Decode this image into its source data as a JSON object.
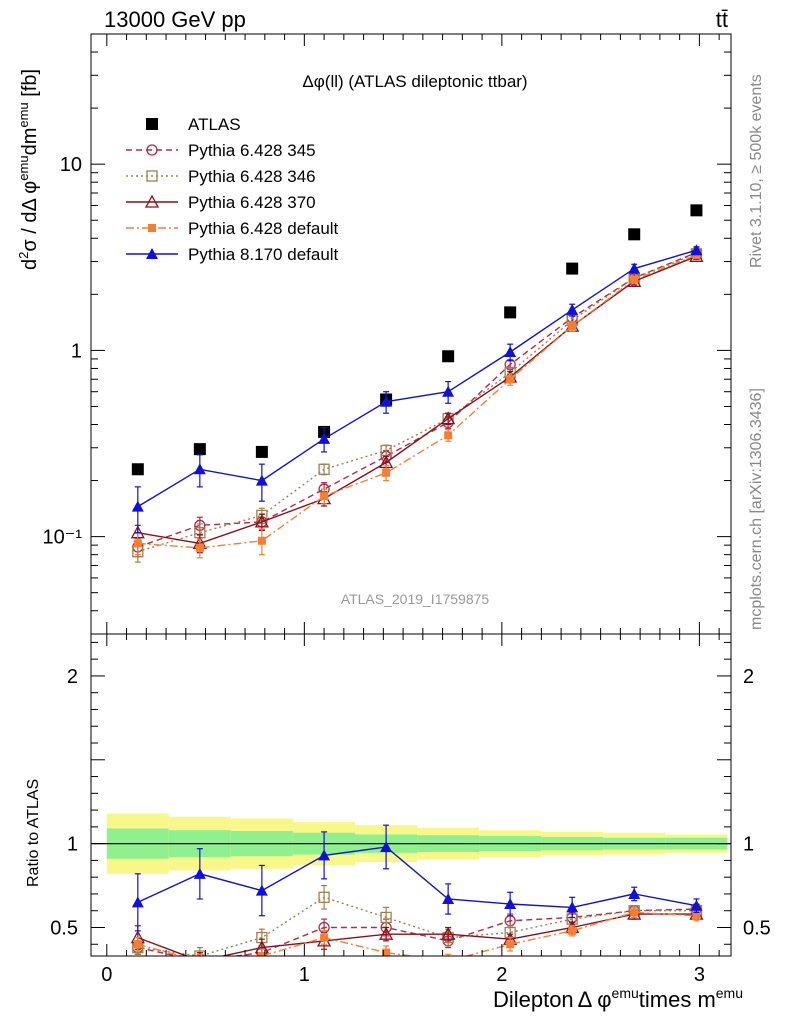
{
  "header": {
    "energy_label": "13000 GeV pp",
    "process_label": "tt̄"
  },
  "side_labels": {
    "rivet": "Rivet 3.1.10, ≥ 500k events",
    "mcplots": "mcplots.cern.ch [arXiv:1306.3436]"
  },
  "plot_title": "Δφ(ll) (ATLAS dileptonic ttbar)",
  "watermark": "ATLAS_2019_I1759875",
  "colors": {
    "atlas": "#000000",
    "py6_345": "#b22a46",
    "py6_346": "#a0804a",
    "py6_370": "#8b0e1c",
    "py6_default": "#f57f30",
    "py8_default": "#1010dd",
    "band_inner": "#8ef08e",
    "band_outer": "#f8f88a"
  },
  "chart_data": [
    {
      "type": "scatter",
      "panel": "main",
      "ylabel": "d²σ / dΔ φ^emu dm^emu [fb]",
      "yscale": "log",
      "ylim": [
        0.03,
        50
      ],
      "xlim": [
        -0.08,
        3.16
      ],
      "y_ticks": [
        "10⁻¹",
        "1",
        "10"
      ],
      "legend": [
        "ATLAS",
        "Pythia 6.428 345",
        "Pythia 6.428 346",
        "Pythia 6.428 370",
        "Pythia 6.428 default",
        "Pythia 8.170 default"
      ],
      "legend_position": "top-left",
      "x": [
        0.157,
        0.471,
        0.785,
        1.1,
        1.414,
        1.728,
        2.042,
        2.356,
        2.67,
        2.985
      ],
      "series": [
        {
          "name": "ATLAS",
          "marker": "square-filled",
          "values": [
            0.23,
            0.295,
            0.285,
            0.365,
            0.545,
            0.93,
            1.6,
            2.75,
            4.2,
            5.65
          ]
        },
        {
          "name": "Pythia 6.428 345",
          "marker": "circle-open",
          "line": "dashed",
          "values": [
            0.088,
            0.115,
            0.12,
            0.18,
            0.27,
            0.41,
            0.84,
            1.5,
            2.45,
            3.35
          ],
          "err": [
            0.01,
            0.012,
            0.012,
            0.015,
            0.02,
            0.03,
            0.05,
            0.08,
            0.1,
            0.12
          ]
        },
        {
          "name": "Pythia 6.428 346",
          "marker": "square-open",
          "line": "dotted",
          "values": [
            0.083,
            0.105,
            0.13,
            0.23,
            0.29,
            0.43,
            0.76,
            1.45,
            2.45,
            3.3
          ],
          "err": [
            0.01,
            0.012,
            0.012,
            0.015,
            0.02,
            0.03,
            0.05,
            0.08,
            0.1,
            0.12
          ]
        },
        {
          "name": "Pythia 6.428 370",
          "marker": "triangle-open",
          "line": "solid",
          "values": [
            0.105,
            0.092,
            0.12,
            0.16,
            0.25,
            0.43,
            0.72,
            1.35,
            2.35,
            3.2
          ],
          "err": [
            0.01,
            0.01,
            0.012,
            0.014,
            0.02,
            0.03,
            0.05,
            0.08,
            0.1,
            0.12
          ]
        },
        {
          "name": "Pythia 6.428 default",
          "marker": "square-filled-small",
          "line": "dashdot",
          "values": [
            0.092,
            0.087,
            0.095,
            0.165,
            0.22,
            0.35,
            0.7,
            1.35,
            2.4,
            3.25
          ],
          "err": [
            0.012,
            0.01,
            0.015,
            0.015,
            0.02,
            0.025,
            0.05,
            0.08,
            0.1,
            0.12
          ]
        },
        {
          "name": "Pythia 8.170 default",
          "marker": "triangle-filled",
          "line": "solid",
          "values": [
            0.145,
            0.23,
            0.2,
            0.335,
            0.53,
            0.6,
            0.98,
            1.65,
            2.75,
            3.45
          ],
          "err": [
            0.04,
            0.045,
            0.045,
            0.05,
            0.07,
            0.08,
            0.1,
            0.12,
            0.15,
            0.15
          ]
        }
      ]
    },
    {
      "type": "line",
      "panel": "ratio",
      "xlabel": "Dilepton Δ φ^emu times m^emu",
      "ylabel": "Ratio to ATLAS",
      "ylim": [
        0.33,
        2.25
      ],
      "xlim": [
        -0.08,
        3.16
      ],
      "x_ticks": [
        "0",
        "1",
        "2",
        "3"
      ],
      "y_ticks": [
        "0.5",
        "1",
        "2"
      ],
      "bin_edges": [
        0,
        0.314,
        0.628,
        0.942,
        1.257,
        1.571,
        1.885,
        2.199,
        2.513,
        2.827,
        3.142
      ],
      "band_inner": [
        0.09,
        0.08,
        0.075,
        0.065,
        0.055,
        0.05,
        0.045,
        0.04,
        0.035,
        0.035
      ],
      "band_outer": [
        0.18,
        0.16,
        0.15,
        0.13,
        0.11,
        0.095,
        0.08,
        0.07,
        0.065,
        0.055
      ],
      "x": [
        0.157,
        0.471,
        0.785,
        1.1,
        1.414,
        1.728,
        2.042,
        2.356,
        2.67,
        2.985
      ],
      "series": [
        {
          "name": "Pythia 6.428 345",
          "values": [
            0.38,
            0.3,
            0.35,
            0.5,
            0.5,
            0.42,
            0.54,
            0.56,
            0.6,
            0.61
          ],
          "err": [
            0.04,
            0.04,
            0.04,
            0.05,
            0.05,
            0.04,
            0.04,
            0.03,
            0.03,
            0.03
          ]
        },
        {
          "name": "Pythia 6.428 346",
          "values": [
            0.38,
            0.33,
            0.44,
            0.68,
            0.56,
            0.44,
            0.47,
            0.55,
            0.6,
            0.6
          ],
          "err": [
            0.04,
            0.05,
            0.05,
            0.07,
            0.06,
            0.05,
            0.04,
            0.03,
            0.03,
            0.03
          ]
        },
        {
          "name": "Pythia 6.428 370",
          "values": [
            0.44,
            0.3,
            0.38,
            0.42,
            0.46,
            0.46,
            0.43,
            0.5,
            0.58,
            0.58
          ],
          "err": [
            0.07,
            0.05,
            0.05,
            0.05,
            0.04,
            0.04,
            0.03,
            0.03,
            0.03,
            0.03
          ]
        },
        {
          "name": "Pythia 6.428 default",
          "values": [
            0.4,
            0.3,
            0.33,
            0.44,
            0.35,
            0.3,
            0.4,
            0.48,
            0.59,
            0.57
          ],
          "err": [
            0.04,
            0.04,
            0.04,
            0.04,
            0.04,
            0.04,
            0.04,
            0.03,
            0.03,
            0.03
          ]
        },
        {
          "name": "Pythia 8.170 default",
          "values": [
            0.65,
            0.82,
            0.72,
            0.93,
            0.98,
            0.67,
            0.64,
            0.62,
            0.7,
            0.63
          ],
          "err": [
            0.17,
            0.15,
            0.15,
            0.14,
            0.13,
            0.09,
            0.07,
            0.06,
            0.04,
            0.04
          ]
        }
      ]
    }
  ]
}
